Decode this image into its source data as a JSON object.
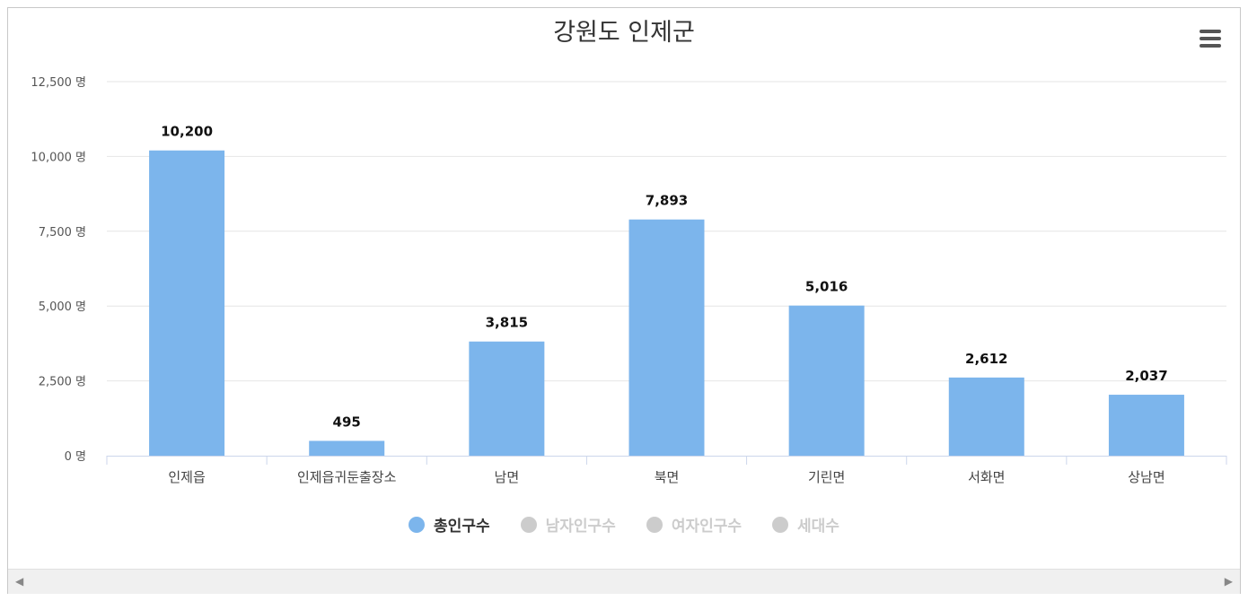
{
  "title": "강원도 인제군",
  "chart_data": {
    "type": "bar",
    "title": "강원도 인제군",
    "categories": [
      "인제읍",
      "인제읍귀둔출장소",
      "남면",
      "북면",
      "기린면",
      "서화면",
      "상남면"
    ],
    "series": [
      {
        "name": "총인구수",
        "values": [
          10200,
          495,
          3815,
          7893,
          5016,
          2612,
          2037
        ],
        "visible": true
      }
    ],
    "data_labels": [
      "10,200",
      "495",
      "3,815",
      "7,893",
      "5,016",
      "2,612",
      "2,037"
    ],
    "ylim": [
      0,
      12500
    ],
    "y_ticks": [
      0,
      2500,
      5000,
      7500,
      10000,
      12500
    ],
    "y_tick_labels": [
      "0 명",
      "2,500 명",
      "5,000 명",
      "7,500 명",
      "10,000 명",
      "12,500 명"
    ],
    "grid": true,
    "legend_position": "bottom-center",
    "bar_color": "#7cb5ec"
  },
  "legend": [
    {
      "label": "총인구수",
      "color": "#7cb5ec",
      "active": true
    },
    {
      "label": "남자인구수",
      "color": "#cccccc",
      "active": false
    },
    {
      "label": "여자인구수",
      "color": "#cccccc",
      "active": false
    },
    {
      "label": "세대수",
      "color": "#cccccc",
      "active": false
    }
  ],
  "menu_icon": "hamburger-icon",
  "scrollbar": {
    "left_icon": "arrow-left-icon",
    "right_icon": "arrow-right-icon",
    "left_glyph": "◀",
    "right_glyph": "▶"
  }
}
